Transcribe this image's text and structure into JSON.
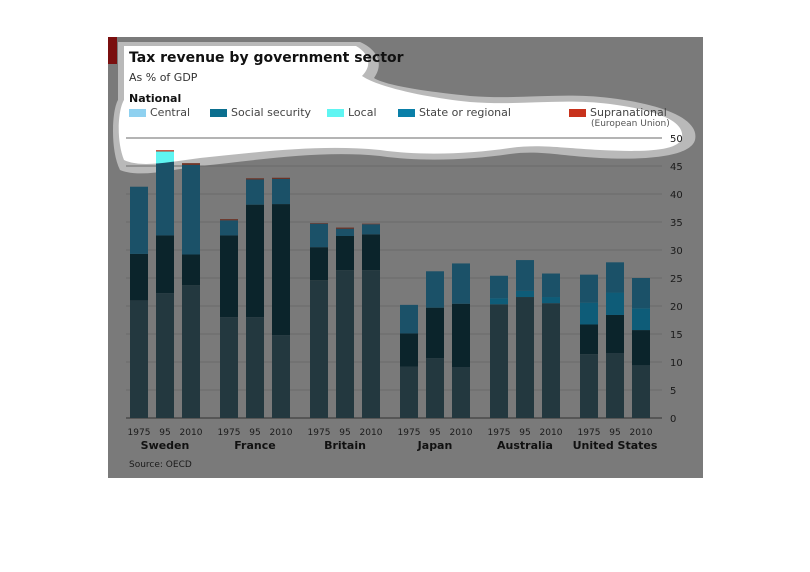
{
  "title": "Tax revenue by government sector",
  "subtitle": "As % of GDP",
  "legend": {
    "heading": "National",
    "items": [
      {
        "label": "Central",
        "color": "#8fd1f0"
      },
      {
        "label": "Social security",
        "color": "#0b6f8f"
      },
      {
        "label": "Local",
        "color": "#5ff5f2"
      },
      {
        "label": "State or regional",
        "color": "#0a7fa8"
      },
      {
        "label": "Supranational",
        "sublabel": "(European Union)",
        "color": "#c8321c"
      }
    ]
  },
  "source": "Source: OECD",
  "chart_data": {
    "type": "bar",
    "stacked": true,
    "ylim": [
      0,
      50
    ],
    "y_ticks": [
      "0",
      "5",
      "10",
      "15",
      "20",
      "25",
      "30",
      "35",
      "40",
      "45",
      "50"
    ],
    "y_axis_side": "right",
    "grid": true,
    "groups": [
      {
        "country": "Sweden",
        "years": [
          "1975",
          "95",
          "2010"
        ]
      },
      {
        "country": "France",
        "years": [
          "1975",
          "95",
          "2010"
        ]
      },
      {
        "country": "Britain",
        "years": [
          "1975",
          "95",
          "2010"
        ]
      },
      {
        "country": "Japan",
        "years": [
          "1975",
          "95",
          "2010"
        ]
      },
      {
        "country": "Australia",
        "years": [
          "1975",
          "95",
          "2010"
        ]
      },
      {
        "country": "United States",
        "years": [
          "1975",
          "95",
          "2010"
        ]
      }
    ],
    "series": [
      {
        "name": "Central",
        "color": "#8fd1f0",
        "values": [
          21,
          22.3,
          23.7,
          18,
          18,
          14.8,
          24.6,
          26.4,
          26.4,
          9.2,
          10.7,
          9.1,
          20.3,
          21.6,
          20.5,
          11.4,
          11.6,
          9.4
        ]
      },
      {
        "name": "Social security",
        "color": "#0b6f8f",
        "values": [
          8.3,
          10.3,
          5.5,
          14.6,
          20.1,
          23.4,
          5.9,
          6.1,
          6.4,
          5.9,
          9,
          11.3,
          0,
          0,
          0,
          5.3,
          6.8,
          6.3
        ]
      },
      {
        "name": "State or regional",
        "color": "#0a7fa8",
        "values": [
          0,
          0,
          0,
          0,
          0,
          0,
          0,
          0,
          0,
          0,
          0,
          0,
          1.1,
          1.1,
          1.1,
          3.9,
          4,
          3.9
        ]
      },
      {
        "name": "Local",
        "color": "#5ff5f2",
        "values": [
          12,
          15,
          16,
          2.7,
          4.5,
          4.5,
          4.2,
          1.3,
          1.8,
          5.1,
          6.5,
          7.2,
          4,
          5.5,
          4.2,
          5,
          5.4,
          5.4
        ]
      },
      {
        "name": "Supranational",
        "color": "#c8321c",
        "values": [
          0,
          0.2,
          0.3,
          0.2,
          0.2,
          0.2,
          0.1,
          0.2,
          0.1,
          0,
          0,
          0,
          0,
          0,
          0,
          0,
          0,
          0
        ]
      }
    ]
  }
}
